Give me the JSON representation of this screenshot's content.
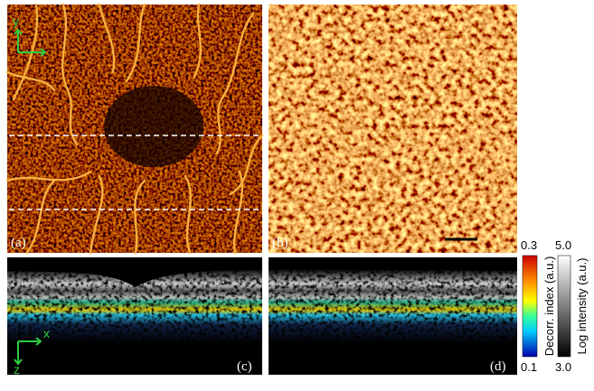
{
  "panels": [
    {
      "label": "(a)"
    },
    {
      "label": "(b)"
    },
    {
      "label": "(c)"
    },
    {
      "label": "(d)"
    }
  ],
  "axes": {
    "a_vertical": "y",
    "c_horizontal": "x",
    "c_vertical": "z"
  },
  "colorbars": [
    {
      "label": "Decorr. index (a.u.)",
      "max": "0.3",
      "min": "0.1"
    },
    {
      "label": "Log intensity (a.u.)",
      "max": "5.0",
      "min": "3.0"
    }
  ]
}
